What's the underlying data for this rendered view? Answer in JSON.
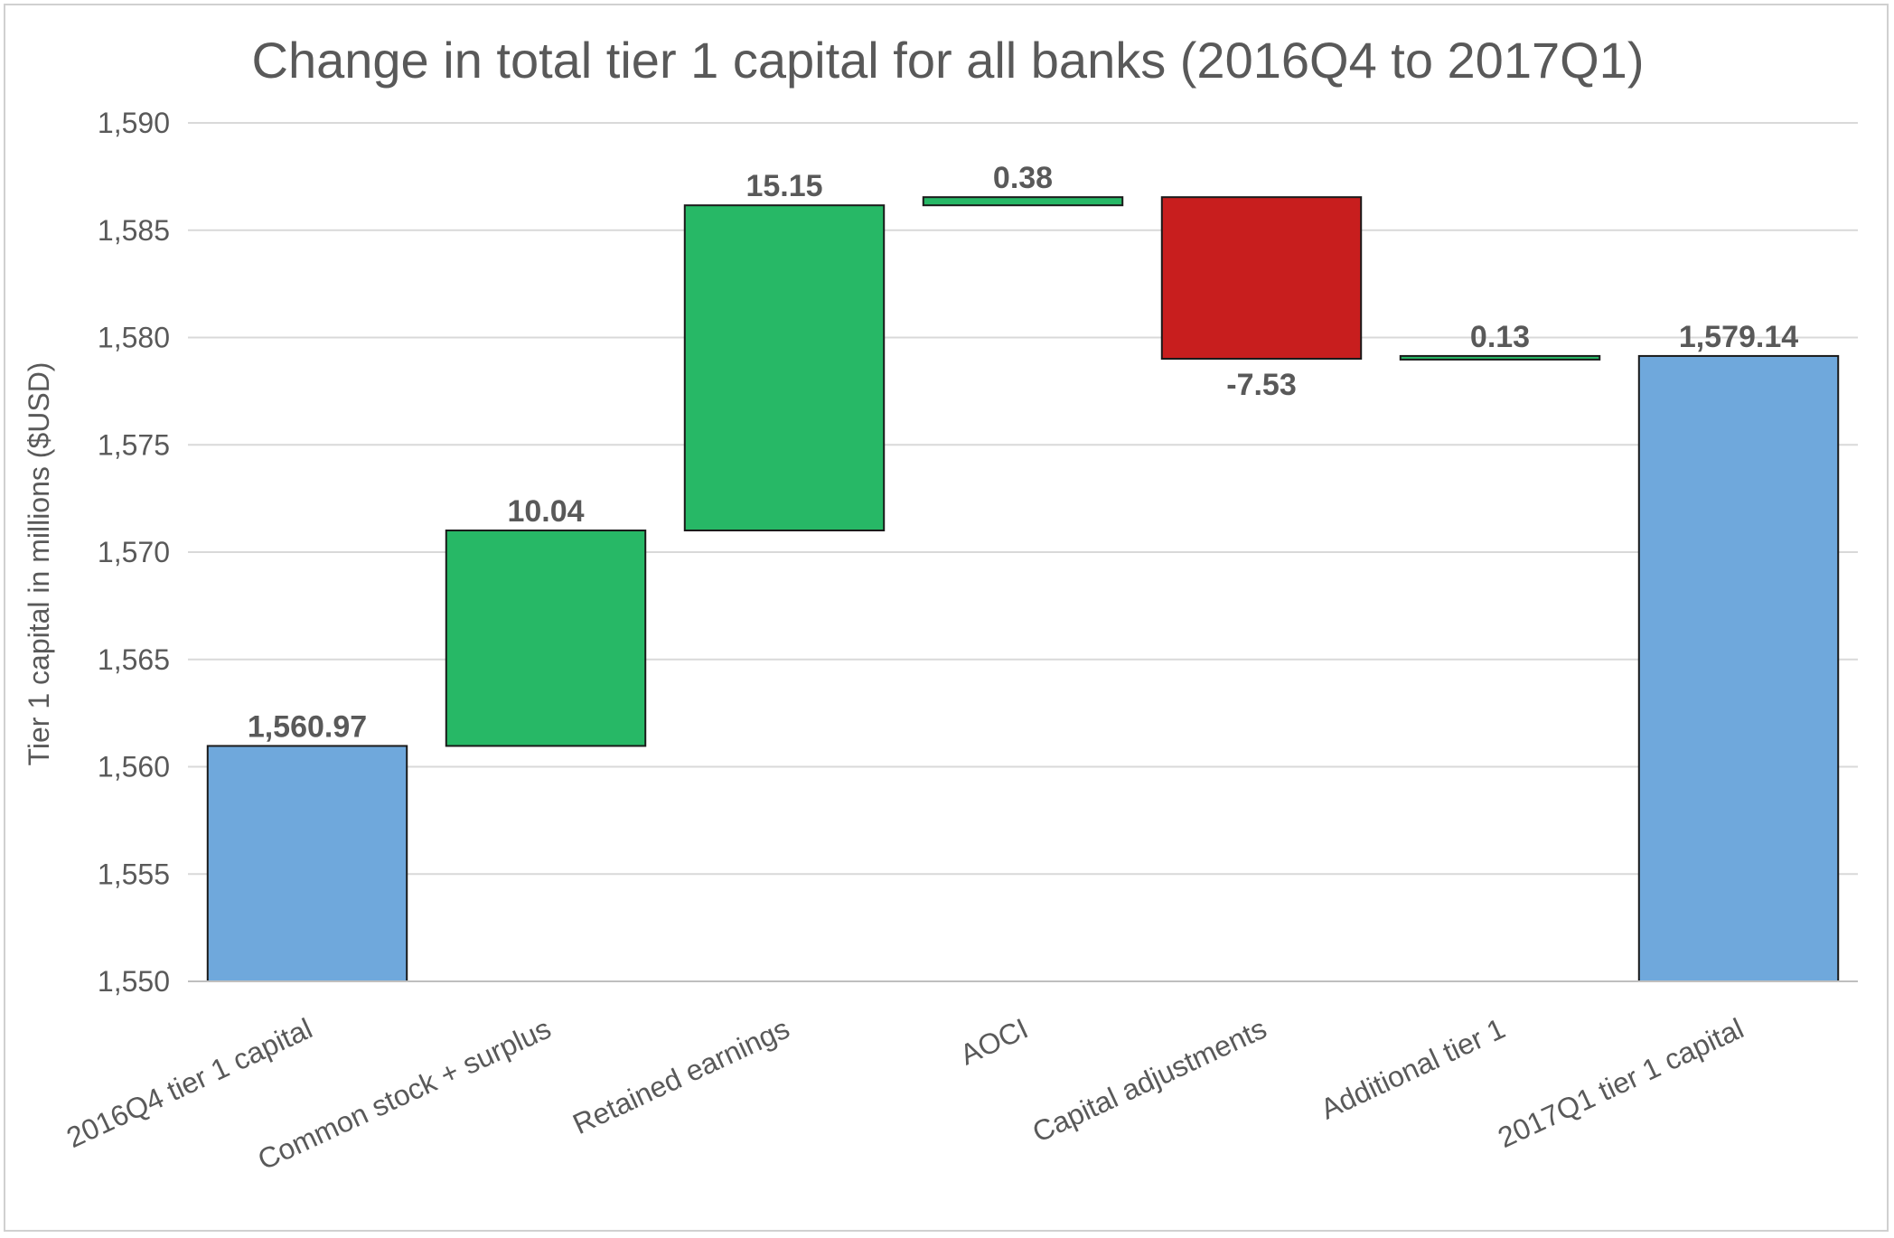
{
  "chart_data": {
    "type": "bar",
    "subtype": "waterfall",
    "title": "Change in total tier 1 capital for all banks (2016Q4 to 2017Q1)",
    "xlabel": "",
    "ylabel": "Tier 1 capital in millions ($USD)",
    "ylim": [
      1550,
      1590
    ],
    "yticks": [
      1550,
      1555,
      1560,
      1565,
      1570,
      1575,
      1580,
      1585,
      1590
    ],
    "ytick_labels": [
      "1,550",
      "1,555",
      "1,560",
      "1,565",
      "1,570",
      "1,575",
      "1,580",
      "1,585",
      "1,590"
    ],
    "grid": true,
    "legend": "none",
    "categories": [
      "2016Q4 tier 1 capital",
      "Common stock + surplus",
      "Retained earnings",
      "AOCI",
      "Capital adjustments",
      "Additional tier 1",
      "2017Q1 tier 1 capital"
    ],
    "values": [
      1560.97,
      10.04,
      15.15,
      0.38,
      -7.53,
      0.13,
      1579.14
    ],
    "value_labels": [
      "1,560.97",
      "10.04",
      "15.15",
      "0.38",
      "-7.53",
      "0.13",
      "1,579.14"
    ],
    "kinds": [
      "total",
      "delta",
      "delta",
      "delta",
      "delta",
      "delta",
      "total"
    ],
    "colors": {
      "total": "#6fa8dc",
      "increase": "#27b866",
      "decrease": "#c81e1e"
    }
  }
}
